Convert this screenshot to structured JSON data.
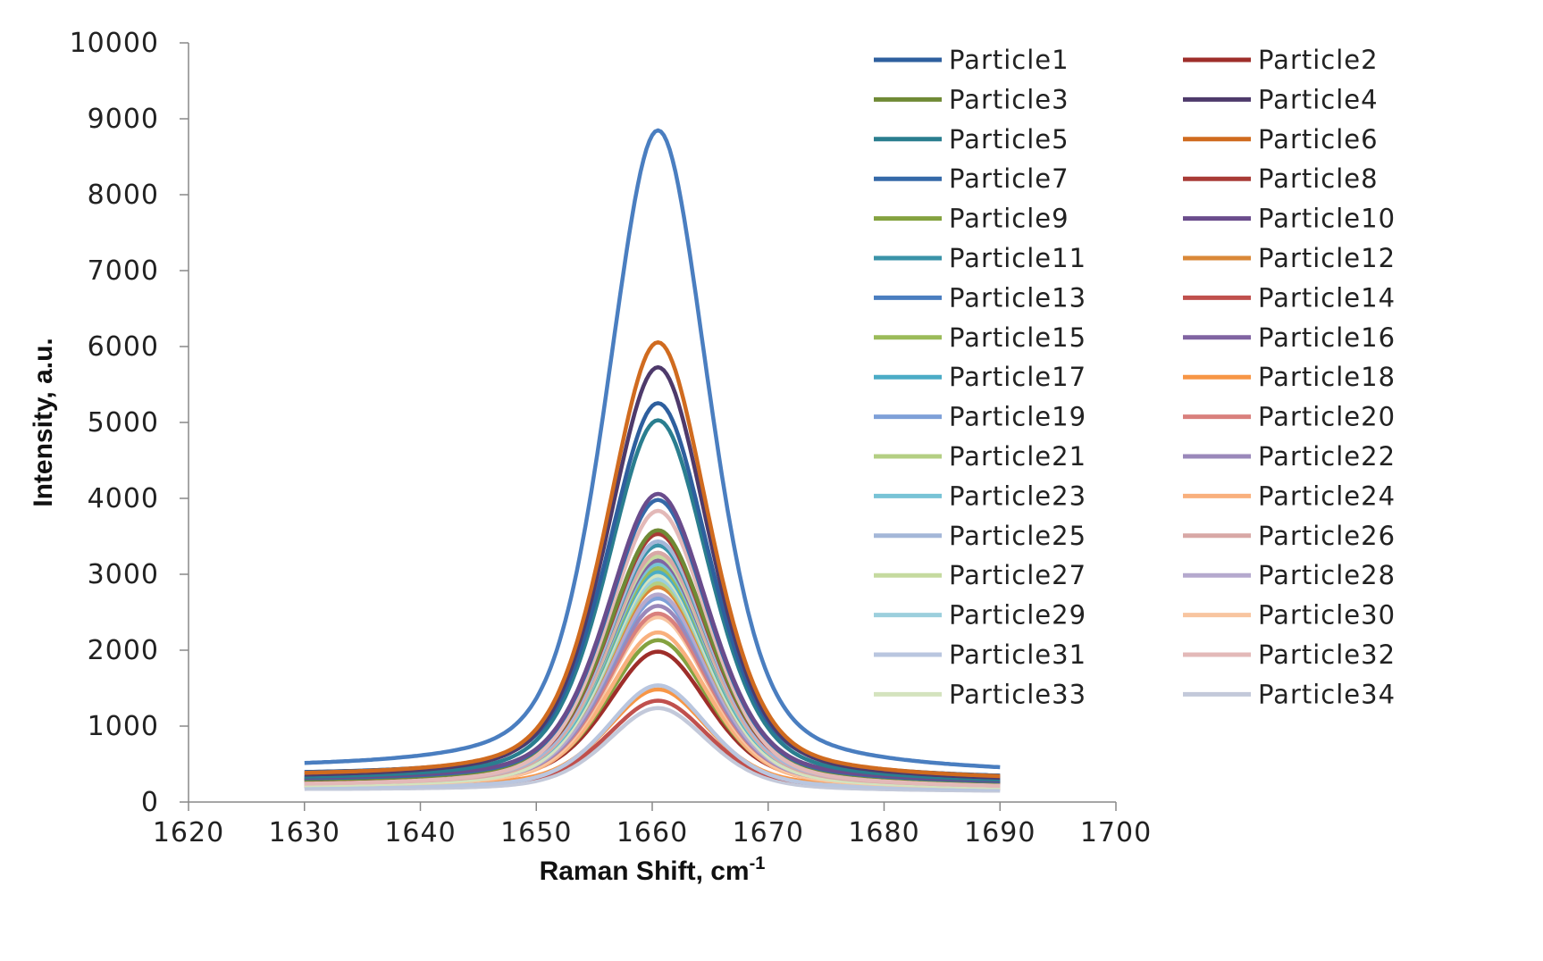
{
  "chart_data": {
    "type": "line",
    "xlabel": "Raman Shift, cm",
    "xlabel_sup": "-1",
    "ylabel": "Intensity, a.u.",
    "xlim": [
      1620,
      1700
    ],
    "ylim": [
      0,
      10000
    ],
    "x_ticks": [
      "1620",
      "1630",
      "1640",
      "1650",
      "1660",
      "1670",
      "1680",
      "1690",
      "1700"
    ],
    "y_ticks": [
      "0",
      "1000",
      "2000",
      "3000",
      "4000",
      "5000",
      "6000",
      "7000",
      "8000",
      "9000",
      "10000"
    ],
    "grid": false,
    "legend_position": "right",
    "x_range": [
      1630,
      1690
    ],
    "peak_center": 1660.5,
    "series": [
      {
        "name": "Particle1",
        "color": "#2E5F9E",
        "peak": 5280,
        "baseline": 340
      },
      {
        "name": "Particle2",
        "color": "#9E2E2A",
        "peak": 2000,
        "baseline": 250
      },
      {
        "name": "Particle3",
        "color": "#6F8A35",
        "peak": 3600,
        "baseline": 260
      },
      {
        "name": "Particle4",
        "color": "#4E3A6B",
        "peak": 5750,
        "baseline": 300
      },
      {
        "name": "Particle5",
        "color": "#2A7E8F",
        "peak": 5050,
        "baseline": 280
      },
      {
        "name": "Particle6",
        "color": "#D06B1F",
        "peak": 6080,
        "baseline": 320
      },
      {
        "name": "Particle7",
        "color": "#3569A8",
        "peak": 4000,
        "baseline": 270
      },
      {
        "name": "Particle8",
        "color": "#A83B36",
        "peak": 3550,
        "baseline": 250
      },
      {
        "name": "Particle9",
        "color": "#84A23F",
        "peak": 2150,
        "baseline": 240
      },
      {
        "name": "Particle10",
        "color": "#6A4C8C",
        "peak": 4080,
        "baseline": 280
      },
      {
        "name": "Particle11",
        "color": "#3A93A8",
        "peak": 3400,
        "baseline": 260
      },
      {
        "name": "Particle12",
        "color": "#DA8838",
        "peak": 2850,
        "baseline": 250
      },
      {
        "name": "Particle13",
        "color": "#4A7EC0",
        "peak": 8880,
        "baseline": 420
      },
      {
        "name": "Particle14",
        "color": "#C0504D",
        "peak": 1350,
        "baseline": 200
      },
      {
        "name": "Particle15",
        "color": "#9BBB59",
        "peak": 3100,
        "baseline": 250
      },
      {
        "name": "Particle16",
        "color": "#8064A2",
        "peak": 3200,
        "baseline": 250
      },
      {
        "name": "Particle17",
        "color": "#4BACC6",
        "peak": 3050,
        "baseline": 240
      },
      {
        "name": "Particle18",
        "color": "#F79646",
        "peak": 1500,
        "baseline": 210
      },
      {
        "name": "Particle19",
        "color": "#7EA0D8",
        "peak": 2700,
        "baseline": 230
      },
      {
        "name": "Particle20",
        "color": "#D9807D",
        "peak": 2500,
        "baseline": 230
      },
      {
        "name": "Particle21",
        "color": "#B4CF83",
        "peak": 2900,
        "baseline": 230
      },
      {
        "name": "Particle22",
        "color": "#9A88BA",
        "peak": 2600,
        "baseline": 220
      },
      {
        "name": "Particle23",
        "color": "#78C3D6",
        "peak": 3150,
        "baseline": 230
      },
      {
        "name": "Particle24",
        "color": "#F9B07D",
        "peak": 2250,
        "baseline": 210
      },
      {
        "name": "Particle25",
        "color": "#A4B7D8",
        "peak": 3450,
        "baseline": 220
      },
      {
        "name": "Particle26",
        "color": "#D8A8A6",
        "peak": 3300,
        "baseline": 210
      },
      {
        "name": "Particle27",
        "color": "#C5DA9F",
        "peak": 3250,
        "baseline": 220
      },
      {
        "name": "Particle28",
        "color": "#B5A9CE",
        "peak": 2750,
        "baseline": 210
      },
      {
        "name": "Particle29",
        "color": "#9CCFDD",
        "peak": 2950,
        "baseline": 210
      },
      {
        "name": "Particle30",
        "color": "#F8C5A0",
        "peak": 2450,
        "baseline": 200
      },
      {
        "name": "Particle31",
        "color": "#B9C6DF",
        "peak": 1550,
        "baseline": 180
      },
      {
        "name": "Particle32",
        "color": "#E3B9B8",
        "peak": 3850,
        "baseline": 200
      },
      {
        "name": "Particle33",
        "color": "#D4E3BE",
        "peak": 3000,
        "baseline": 190
      },
      {
        "name": "Particle34",
        "color": "#C3C9DA",
        "peak": 1250,
        "baseline": 160
      }
    ]
  }
}
